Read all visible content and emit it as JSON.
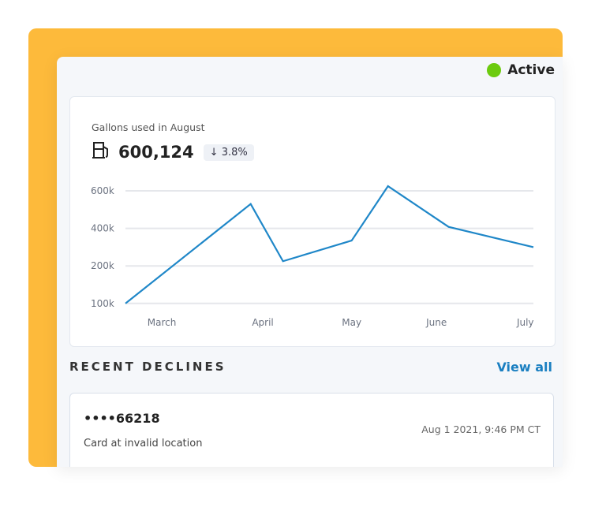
{
  "status": {
    "label": "Active",
    "color": "#6CCB0E"
  },
  "usage": {
    "title": "Gallons used in August",
    "icon": "fuel-pump-icon",
    "value": "600,124",
    "change": "3.8%",
    "change_direction": "down"
  },
  "chart_data": {
    "type": "line",
    "y_ticks": [
      {
        "value": 100000,
        "label": "100k"
      },
      {
        "value": 200000,
        "label": "200k"
      },
      {
        "value": 400000,
        "label": "400k"
      },
      {
        "value": 600000,
        "label": "600k"
      }
    ],
    "x_ticks": [
      {
        "date": "2021-03-10",
        "label": "March"
      },
      {
        "date": "2021-04-04",
        "label": "April"
      },
      {
        "date": "2021-04-26",
        "label": "May"
      },
      {
        "date": "2021-05-17",
        "label": "June"
      },
      {
        "date": "2021-06-08",
        "label": "July"
      }
    ],
    "series": [
      {
        "color": "#1f87c8",
        "points": [
          {
            "x": "2021-03-01",
            "y": 100000
          },
          {
            "x": "2021-04-01",
            "y": 530000
          },
          {
            "x": "2021-04-09",
            "y": 225000
          },
          {
            "x": "2021-04-26",
            "y": 335000
          },
          {
            "x": "2021-05-05",
            "y": 625000
          },
          {
            "x": "2021-05-20",
            "y": 408000
          },
          {
            "x": "2021-06-10",
            "y": 300000
          }
        ]
      }
    ],
    "grid": true
  },
  "declines": {
    "title": "RECENT DECLINES",
    "view_all": "View all",
    "items": [
      {
        "card": "••••66218",
        "reason": "Card at invalid location",
        "date": "Aug 1 2021, 9:46 PM CT"
      }
    ]
  }
}
